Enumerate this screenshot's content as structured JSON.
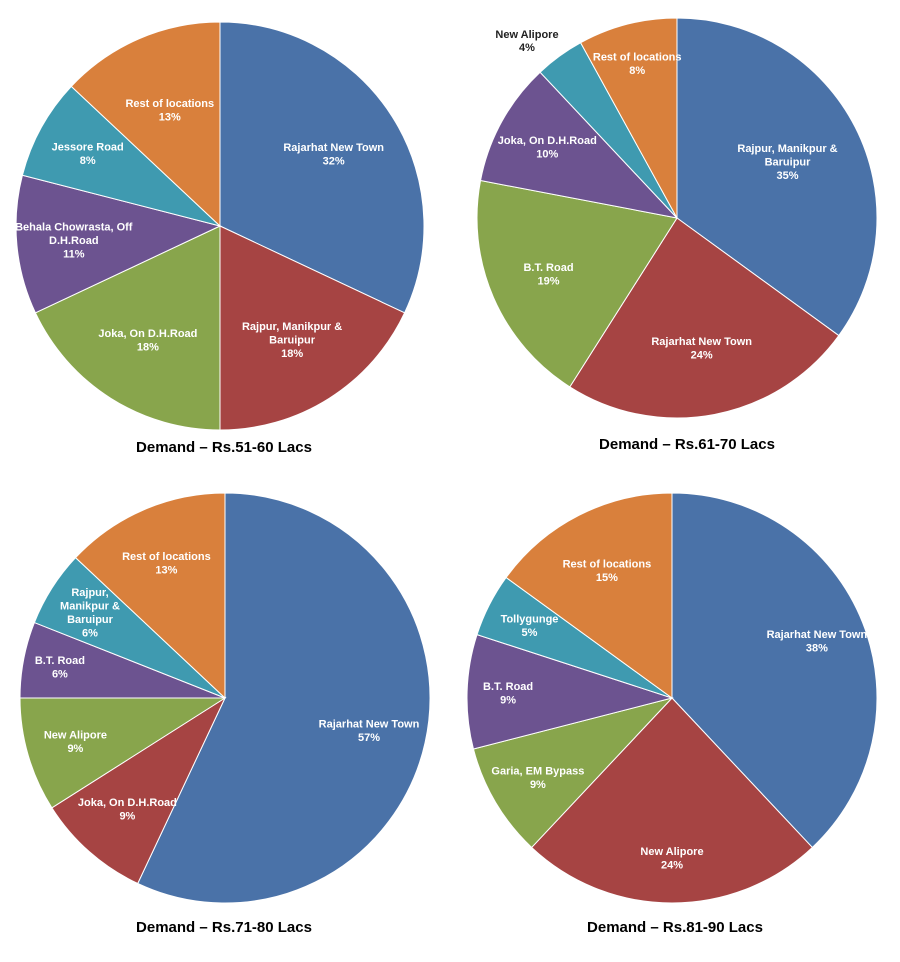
{
  "colors": {
    "blue": "#4A72A8",
    "red": "#A64443",
    "green": "#88A54C",
    "purple": "#6C5390",
    "teal": "#3F9AB0",
    "orange": "#D9803C"
  },
  "chart_data": [
    {
      "type": "pie",
      "title": "Demand – Rs.51-60 Lacs",
      "slices": [
        {
          "label": [
            "Rajarhat New Town"
          ],
          "value": 32,
          "pct": "32%",
          "color": "blue"
        },
        {
          "label": [
            "Rajpur, Manikpur &",
            "Baruipur"
          ],
          "value": 18,
          "pct": "18%",
          "color": "red"
        },
        {
          "label": [
            "Joka, On D.H.Road"
          ],
          "value": 18,
          "pct": "18%",
          "color": "green"
        },
        {
          "label": [
            "Behala Chowrasta,  Off",
            "D.H.Road"
          ],
          "value": 11,
          "pct": "11%",
          "color": "purple"
        },
        {
          "label": [
            "Jessore Road"
          ],
          "value": 8,
          "pct": "8%",
          "color": "teal"
        },
        {
          "label": [
            "Rest of locations"
          ],
          "value": 13,
          "pct": "13%",
          "color": "orange"
        }
      ]
    },
    {
      "type": "pie",
      "title": "Demand – Rs.61-70 Lacs",
      "slices": [
        {
          "label": [
            "Rajpur, Manikpur &",
            "Baruipur"
          ],
          "value": 35,
          "pct": "35%",
          "color": "blue"
        },
        {
          "label": [
            "Rajarhat New Town"
          ],
          "value": 24,
          "pct": "24%",
          "color": "red"
        },
        {
          "label": [
            "B.T. Road"
          ],
          "value": 19,
          "pct": "19%",
          "color": "green"
        },
        {
          "label": [
            "Joka, On D.H.Road"
          ],
          "value": 10,
          "pct": "10%",
          "color": "purple"
        },
        {
          "label": [
            "New Alipore"
          ],
          "value": 4,
          "pct": "4%",
          "color": "teal"
        },
        {
          "label": [
            "Rest of locations"
          ],
          "value": 8,
          "pct": "8%",
          "color": "orange"
        }
      ]
    },
    {
      "type": "pie",
      "title": "Demand – Rs.71-80 Lacs",
      "slices": [
        {
          "label": [
            "Rajarhat New Town"
          ],
          "value": 57,
          "pct": "57%",
          "color": "blue"
        },
        {
          "label": [
            "Joka, On D.H.Road"
          ],
          "value": 9,
          "pct": "9%",
          "color": "red"
        },
        {
          "label": [
            "New Alipore"
          ],
          "value": 9,
          "pct": "9%",
          "color": "green"
        },
        {
          "label": [
            "B.T. Road"
          ],
          "value": 6,
          "pct": "6%",
          "color": "purple"
        },
        {
          "label": [
            "Rajpur,",
            "Manikpur &",
            "Baruipur"
          ],
          "value": 6,
          "pct": "6%",
          "color": "teal"
        },
        {
          "label": [
            "Rest of locations"
          ],
          "value": 13,
          "pct": "13%",
          "color": "orange"
        }
      ]
    },
    {
      "type": "pie",
      "title": "Demand – Rs.81-90 Lacs",
      "slices": [
        {
          "label": [
            "Rajarhat New Town"
          ],
          "value": 38,
          "pct": "38%",
          "color": "blue"
        },
        {
          "label": [
            "New Alipore"
          ],
          "value": 24,
          "pct": "24%",
          "color": "red"
        },
        {
          "label": [
            "Garia, EM Bypass"
          ],
          "value": 9,
          "pct": "9%",
          "color": "green"
        },
        {
          "label": [
            "B.T. Road"
          ],
          "value": 9,
          "pct": "9%",
          "color": "purple"
        },
        {
          "label": [
            "Tollygunge"
          ],
          "value": 5,
          "pct": "5%",
          "color": "teal"
        },
        {
          "label": [
            "Rest of locations"
          ],
          "value": 15,
          "pct": "15%",
          "color": "orange"
        }
      ]
    }
  ]
}
